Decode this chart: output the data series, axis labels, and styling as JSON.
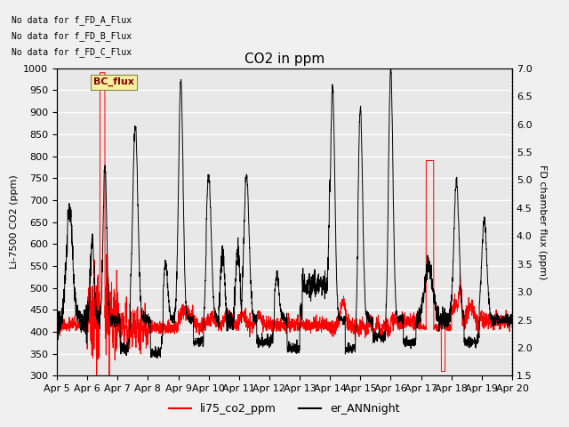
{
  "title": "CO2 in ppm",
  "ylabel_left": "Li-7500 CO2 (ppm)",
  "ylabel_right": "FD chamber flux (ppm)",
  "ylim_left": [
    300,
    1000
  ],
  "ylim_right": [
    1.5,
    7.0
  ],
  "yticks_left": [
    300,
    350,
    400,
    450,
    500,
    550,
    600,
    650,
    700,
    750,
    800,
    850,
    900,
    950,
    1000
  ],
  "yticks_right": [
    1.5,
    2.0,
    2.5,
    3.0,
    3.5,
    4.0,
    4.5,
    5.0,
    5.5,
    6.0,
    6.5,
    7.0
  ],
  "xtick_labels": [
    "Apr 5",
    "Apr 6",
    "Apr 7",
    "Apr 8",
    "Apr 9",
    "Apr 10",
    "Apr 11",
    "Apr 12",
    "Apr 13",
    "Apr 14",
    "Apr 15",
    "Apr 16",
    "Apr 17",
    "Apr 18",
    "Apr 19",
    "Apr 20"
  ],
  "legend_labels": [
    "li75_co2_ppm",
    "er_ANNnight"
  ],
  "legend_colors": [
    "red",
    "black"
  ],
  "text_annotations": [
    "No data for f_FD_A_Flux",
    "No data for f_FD_B_Flux",
    "No data for f_FD_C_Flux"
  ],
  "legend_box_label": "BC_flux",
  "bg_color": "#e8e8e8",
  "plot_bg_color": "#e8e8e8",
  "title_fontsize": 11,
  "label_fontsize": 8,
  "tick_fontsize": 8,
  "n_days": 15,
  "n_pts": 3000
}
